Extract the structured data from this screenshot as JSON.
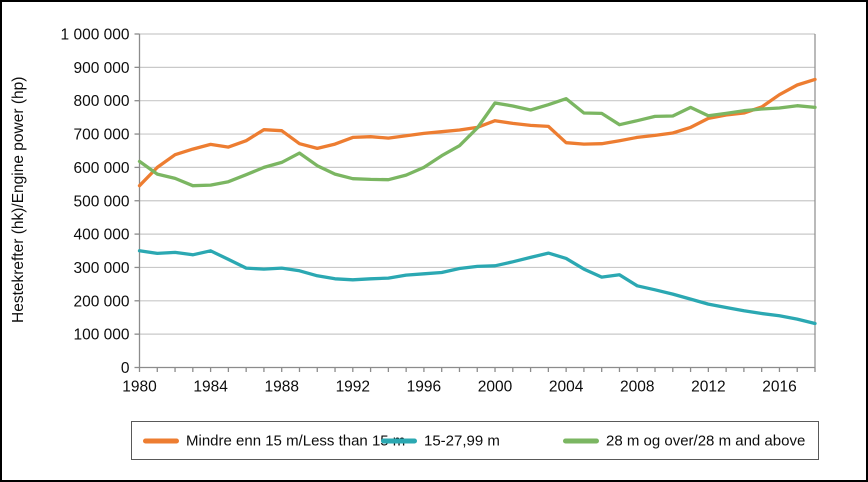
{
  "y_axis": {
    "title": "Hestekrefter (hk)/Engine power (hp)",
    "tick_labels": [
      "0",
      "100 000",
      "200 000",
      "300 000",
      "400 000",
      "500 000",
      "600 000",
      "700 000",
      "800 000",
      "900 000",
      "1 000 000"
    ]
  },
  "x_axis": {
    "labeled_years": [
      1980,
      1984,
      1988,
      1992,
      1996,
      2000,
      2004,
      2008,
      2012,
      2016
    ]
  },
  "styles": {
    "gridline_color": "#C9C9C9",
    "axis_color": "#8C8C8C",
    "text_color": "#0d0d0d",
    "legend_border_color": "#595959",
    "outer_border_color": "#000000"
  },
  "chart_data": {
    "type": "line",
    "title": "",
    "xlabel": "",
    "ylabel": "Hestekrefter (hk)/Engine power (hp)",
    "xlim": [
      1980,
      2018
    ],
    "ylim": [
      0,
      1000000
    ],
    "y_tick_step": 100000,
    "grid": "horizontal",
    "legend_position": "bottom",
    "x": [
      1980,
      1981,
      1982,
      1983,
      1984,
      1985,
      1986,
      1987,
      1988,
      1989,
      1990,
      1991,
      1992,
      1993,
      1994,
      1995,
      1996,
      1997,
      1998,
      1999,
      2000,
      2001,
      2002,
      2003,
      2004,
      2005,
      2006,
      2007,
      2008,
      2009,
      2010,
      2011,
      2012,
      2013,
      2014,
      2015,
      2016,
      2017,
      2018
    ],
    "series": [
      {
        "name": "Mindre enn 15 m/Less than 15 m",
        "color": "#ED7D31",
        "values": [
          545000,
          600000,
          638000,
          655000,
          669000,
          661000,
          680000,
          713000,
          710000,
          671000,
          657000,
          670000,
          690000,
          692000,
          688000,
          695000,
          702000,
          707000,
          712000,
          720000,
          740000,
          732000,
          726000,
          723000,
          674000,
          670000,
          671000,
          680000,
          690000,
          696000,
          703000,
          720000,
          747000,
          757000,
          763000,
          781000,
          818000,
          847000,
          864000
        ]
      },
      {
        "name": "15-27,99 m",
        "color": "#2BA8B2",
        "values": [
          350000,
          342000,
          345000,
          338000,
          350000,
          324000,
          298000,
          295000,
          298000,
          290000,
          275000,
          266000,
          263000,
          266000,
          268000,
          277000,
          281000,
          285000,
          297000,
          303000,
          305000,
          317000,
          330000,
          343000,
          327000,
          295000,
          271000,
          278000,
          245000,
          233000,
          220000,
          205000,
          190000,
          180000,
          170000,
          162000,
          155000,
          145000,
          132000
        ]
      },
      {
        "name": "28 m og over/28 m and above",
        "color": "#7BB662",
        "values": [
          618000,
          580000,
          567000,
          545000,
          547000,
          557000,
          578000,
          600000,
          615000,
          643000,
          605000,
          580000,
          566000,
          564000,
          563000,
          577000,
          600000,
          635000,
          665000,
          718000,
          793000,
          784000,
          772000,
          788000,
          806000,
          763000,
          762000,
          728000,
          740000,
          753000,
          754000,
          780000,
          755000,
          762000,
          770000,
          775000,
          778000,
          785000,
          780000
        ]
      }
    ]
  }
}
